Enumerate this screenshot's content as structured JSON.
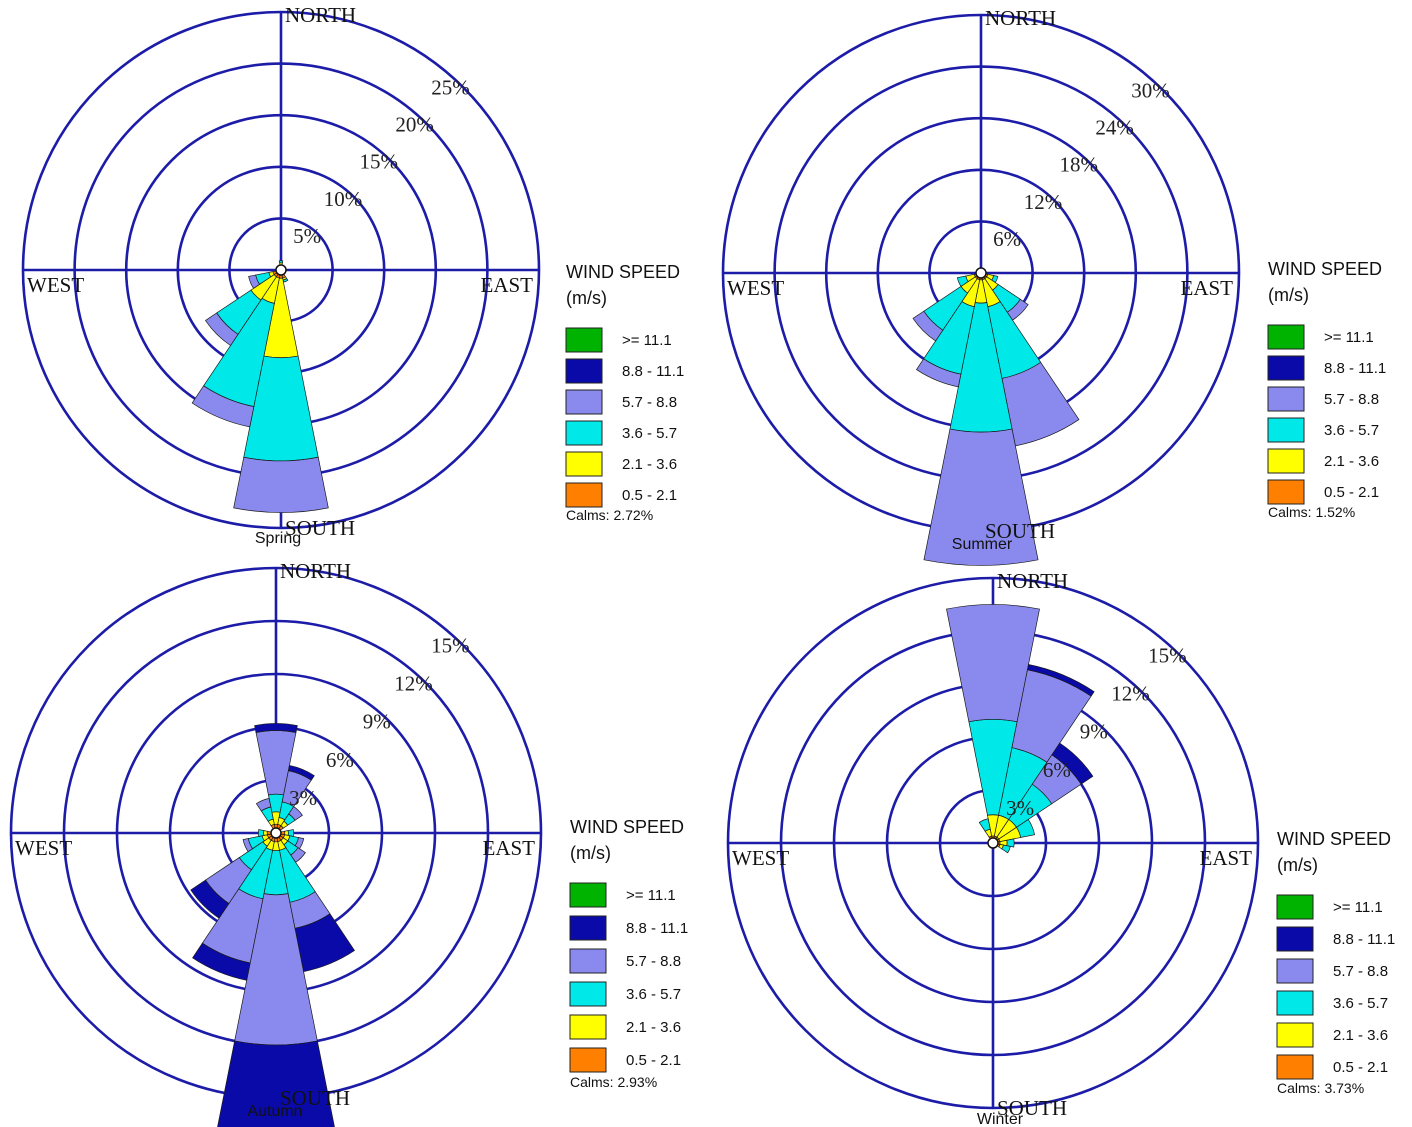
{
  "directions": {
    "north": "NORTH",
    "south": "SOUTH",
    "east": "EAST",
    "west": "WEST"
  },
  "legend": {
    "title": "WIND SPEED",
    "unit": "(m/s)",
    "bins": [
      {
        "label": ">= 11.1",
        "color": "#00b300"
      },
      {
        "label": "8.8 - 11.1",
        "color": "#0a0aa8"
      },
      {
        "label": "5.7 -  8.8",
        "color": "#8a8aee"
      },
      {
        "label": "3.6 -  5.7",
        "color": "#00e8e8"
      },
      {
        "label": "2.1 -  3.6",
        "color": "#ffff00"
      },
      {
        "label": "0.5 -  2.1",
        "color": "#ff8000"
      }
    ]
  },
  "style": {
    "ring_color": "#1c1ca8",
    "axis_color": "#1c1ca8"
  },
  "chart_data": [
    {
      "type": "windrose",
      "title": "Spring",
      "calms": "Calms: 2.72%",
      "ring_labels": [
        "5%",
        "10%",
        "15%",
        "20%",
        "25%"
      ],
      "rmax": 25,
      "sectors": [
        {
          "direction": 0,
          "cumulative": [
            0.5,
            0.7,
            0.9
          ]
        },
        {
          "direction": 157.5,
          "cumulative": [
            0.8,
            1.0,
            1.2
          ]
        },
        {
          "direction": 180,
          "cumulative": [
            0.8,
            8.5,
            18.5,
            23.5
          ]
        },
        {
          "direction": 202.5,
          "cumulative": [
            0.8,
            3.3,
            13.5,
            15.5
          ]
        },
        {
          "direction": 225,
          "cumulative": [
            0.8,
            3.5,
            7.5,
            8.8
          ]
        },
        {
          "direction": 247.5,
          "cumulative": [
            0.8,
            1.2,
            2.5,
            3.2
          ]
        }
      ]
    },
    {
      "type": "windrose",
      "title": "Summer",
      "calms": "Calms: 1.52%",
      "ring_labels": [
        "6%",
        "12%",
        "18%",
        "24%",
        "30%"
      ],
      "rmax": 30,
      "sectors": [
        {
          "direction": 112.5,
          "cumulative": [
            0.8,
            1.5,
            2.0
          ]
        },
        {
          "direction": 135,
          "cumulative": [
            0.8,
            2.4,
            5.5,
            6.6
          ]
        },
        {
          "direction": 157.5,
          "cumulative": [
            0.8,
            4.0,
            12.5,
            20.5
          ]
        },
        {
          "direction": 180,
          "cumulative": [
            0.8,
            3.5,
            18.5,
            34.0
          ]
        },
        {
          "direction": 202.5,
          "cumulative": [
            0.8,
            4.0,
            12.0,
            13.5
          ]
        },
        {
          "direction": 225,
          "cumulative": [
            0.8,
            2.8,
            8.0,
            9.5
          ]
        },
        {
          "direction": 247.5,
          "cumulative": [
            0.8,
            1.8,
            2.8
          ]
        }
      ]
    },
    {
      "type": "windrose",
      "title": "Autumn",
      "calms": "Calms: 2.93%",
      "ring_labels": [
        "3%",
        "6%",
        "9%",
        "12%",
        "15%"
      ],
      "rmax": 15,
      "sectors": [
        {
          "direction": 0,
          "cumulative": [
            0.5,
            1.2,
            2.2,
            5.8,
            6.2
          ]
        },
        {
          "direction": 22.5,
          "cumulative": [
            0.5,
            0.9,
            1.8,
            3.6,
            3.9
          ]
        },
        {
          "direction": 45,
          "cumulative": [
            0.5,
            0.8,
            1.3,
            1.8
          ]
        },
        {
          "direction": 90,
          "cumulative": [
            0.5,
            0.7,
            1.0
          ]
        },
        {
          "direction": 112.5,
          "cumulative": [
            0.5,
            0.8,
            1.3,
            1.6
          ]
        },
        {
          "direction": 135,
          "cumulative": [
            0.5,
            0.8,
            1.5,
            2.0
          ]
        },
        {
          "direction": 157.5,
          "cumulative": [
            0.5,
            1.0,
            4.0,
            5.5,
            8.0
          ]
        },
        {
          "direction": 180,
          "cumulative": [
            0.5,
            1.0,
            3.5,
            12.0,
            17.0
          ]
        },
        {
          "direction": 202.5,
          "cumulative": [
            0.5,
            1.0,
            3.8,
            7.5,
            8.5
          ]
        },
        {
          "direction": 225,
          "cumulative": [
            0.5,
            0.9,
            2.5,
            4.8,
            5.8
          ]
        },
        {
          "direction": 247.5,
          "cumulative": [
            0.5,
            0.8,
            1.6,
            1.9
          ]
        },
        {
          "direction": 270,
          "cumulative": [
            0.5,
            0.7,
            1.0
          ]
        },
        {
          "direction": 337.5,
          "cumulative": [
            0.5,
            0.8,
            1.5,
            2.0
          ]
        }
      ]
    },
    {
      "type": "windrose",
      "title": "Winter",
      "calms": "Calms: 3.73%",
      "ring_labels": [
        "3%",
        "6%",
        "9%",
        "12%",
        "15%"
      ],
      "rmax": 15,
      "sectors": [
        {
          "direction": 0,
          "cumulative": [
            0.4,
            1.6,
            7.0,
            13.5
          ]
        },
        {
          "direction": 22.5,
          "cumulative": [
            0.4,
            1.6,
            5.5,
            10.0,
            10.3
          ]
        },
        {
          "direction": 45,
          "cumulative": [
            0.4,
            1.6,
            4.0,
            6.0,
            6.8
          ]
        },
        {
          "direction": 67.5,
          "cumulative": [
            0.4,
            1.6,
            2.4
          ]
        },
        {
          "direction": 90,
          "cumulative": [
            0.4,
            0.8,
            1.2
          ]
        },
        {
          "direction": 112.5,
          "cumulative": [
            0.4,
            0.6,
            1.0
          ]
        },
        {
          "direction": 337.5,
          "cumulative": [
            0.4,
            0.8,
            1.4
          ]
        }
      ]
    }
  ]
}
